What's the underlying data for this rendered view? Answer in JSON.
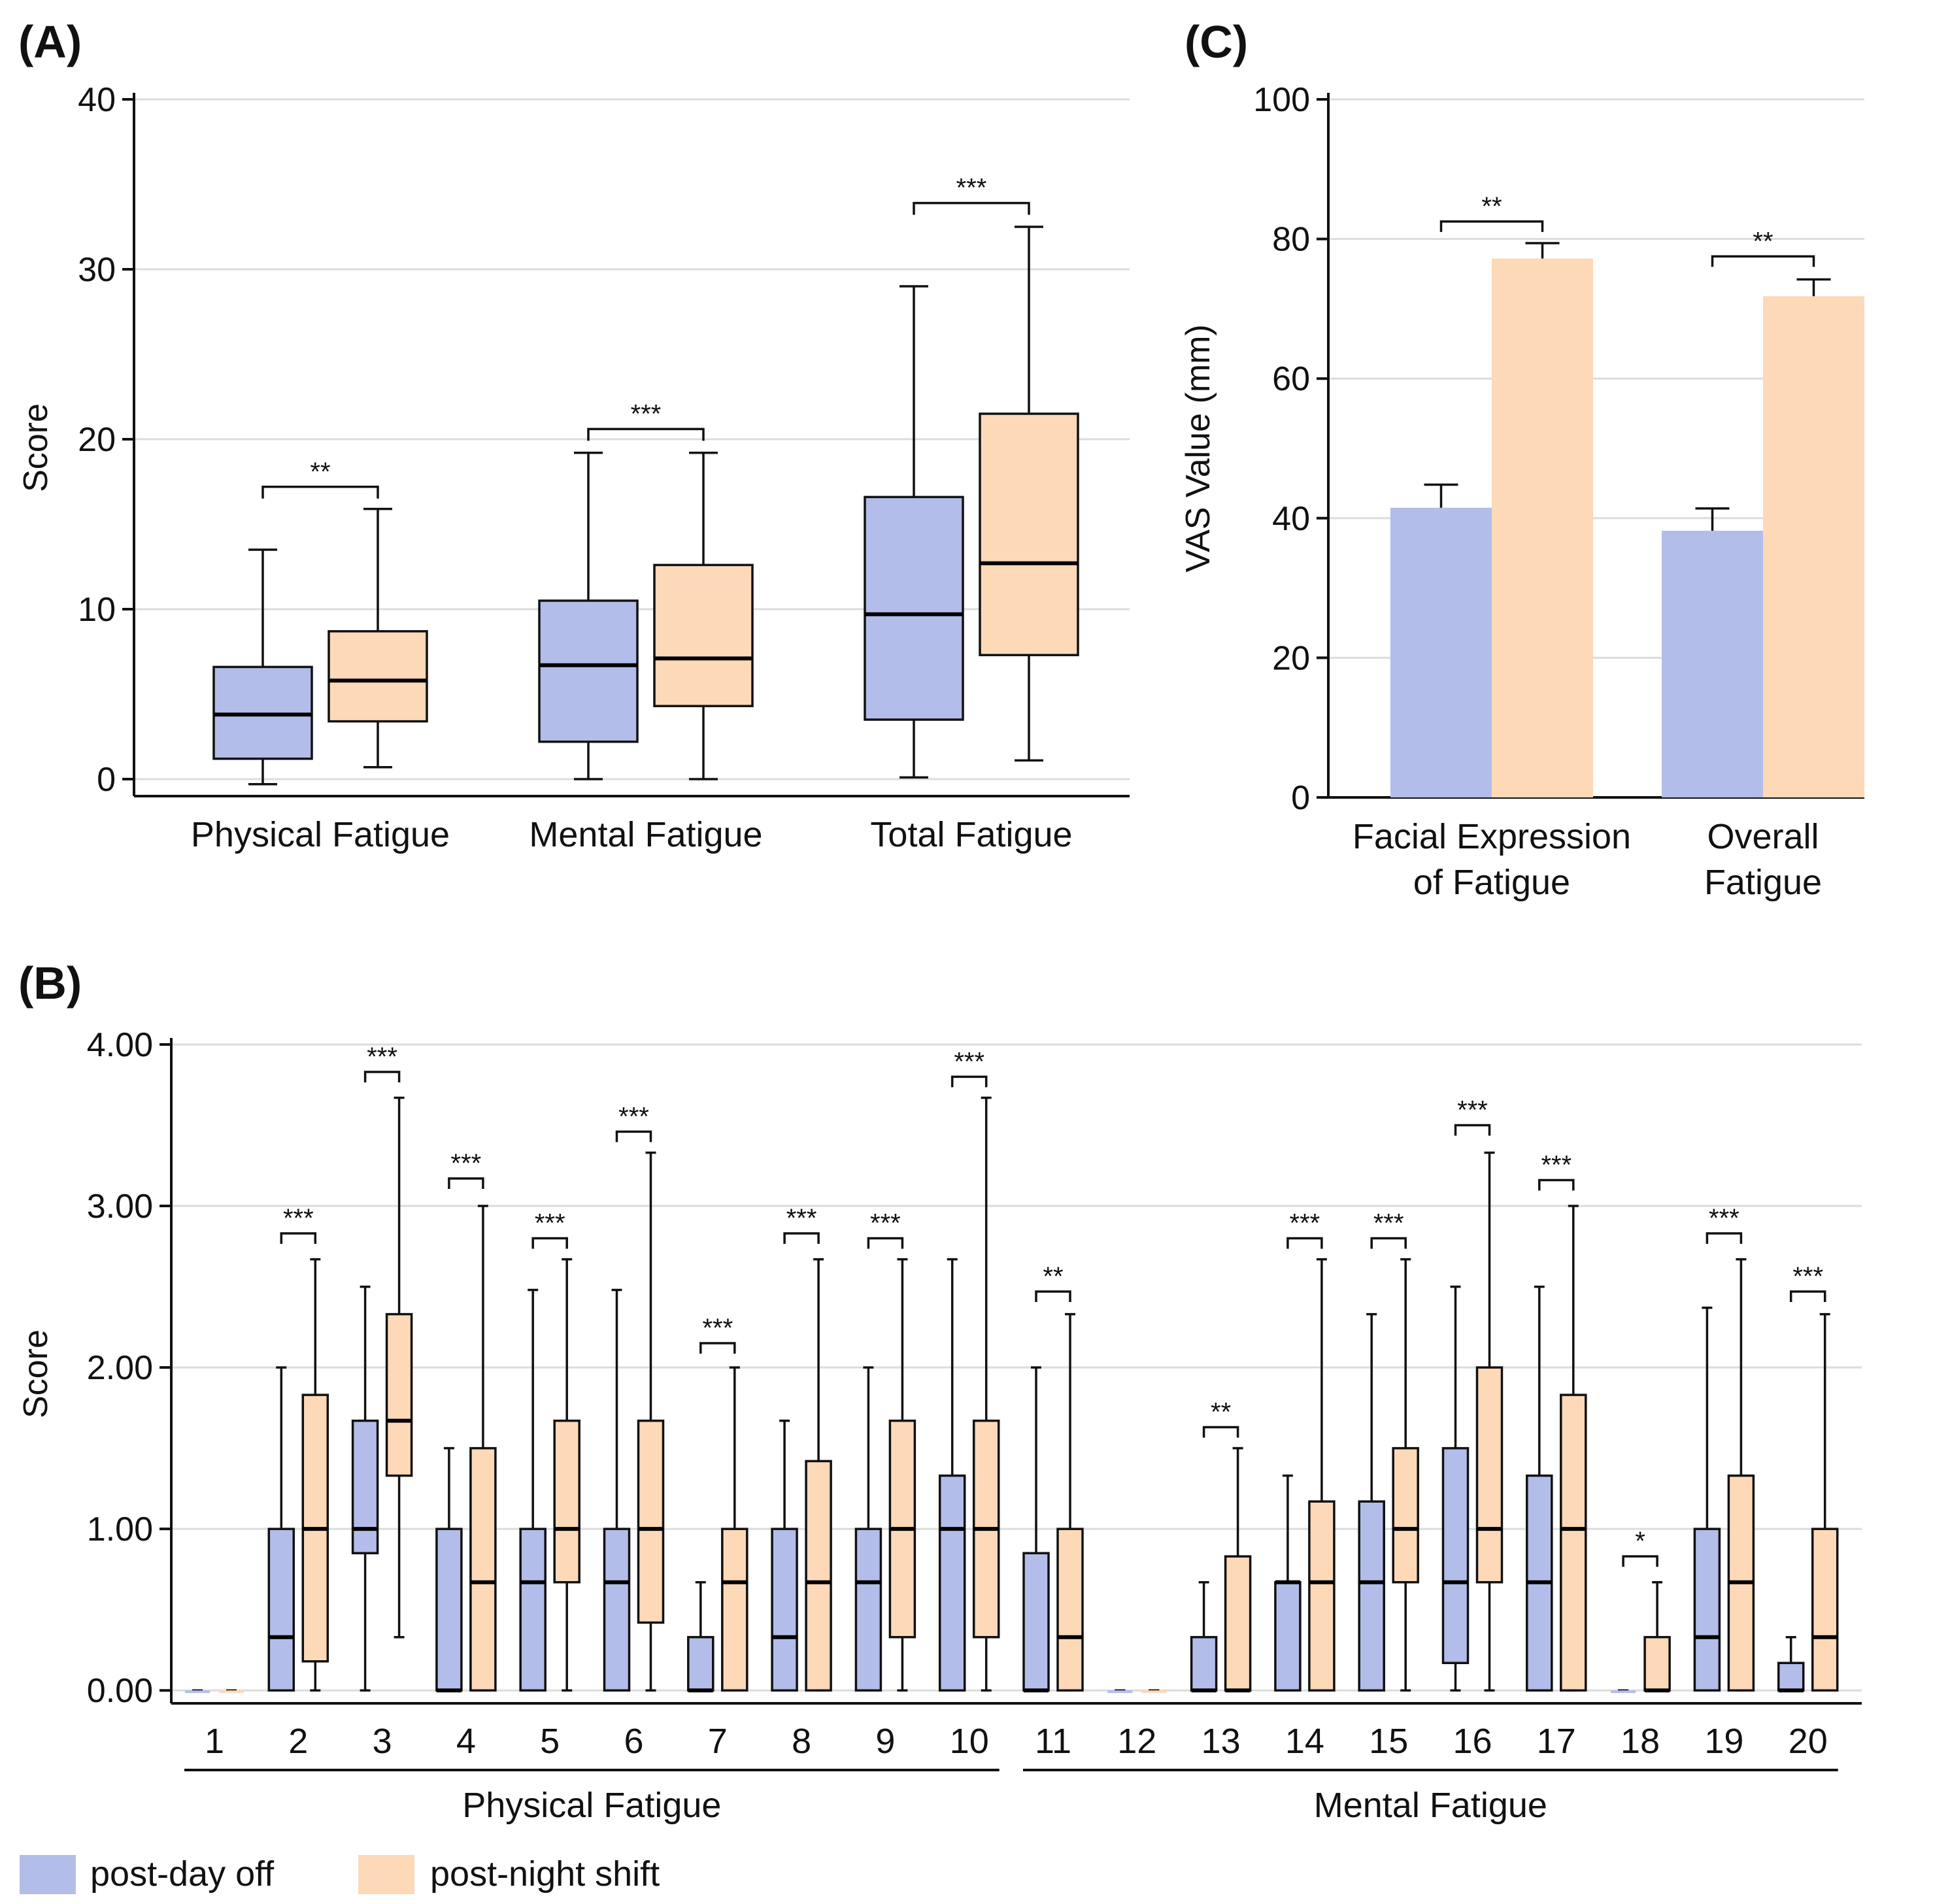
{
  "colors": {
    "day_off": "#b3bdea",
    "night_shift": "#fdd9b8",
    "grid": "#dcdcdc",
    "ink": "#111111"
  },
  "legend": [
    {
      "label": "post-day off",
      "color": "#b3bdea"
    },
    {
      "label": "post-night shift",
      "color": "#fdd9b8"
    }
  ],
  "chart_data": [
    {
      "panel": "(A)",
      "type": "box",
      "ylabel": "Score",
      "ylim": [
        -1,
        40
      ],
      "yticks": [
        0,
        10,
        20,
        30,
        40
      ],
      "ytick_labels": [
        "0",
        "10",
        "20",
        "30",
        "40"
      ],
      "categories": [
        "Physical Fatigue",
        "Mental Fatigue",
        "Total Fatigue"
      ],
      "series": [
        {
          "name": "post-day off",
          "boxes": [
            {
              "min": -0.3,
              "q1": 1.2,
              "median": 3.8,
              "q3": 6.6,
              "max": 13.5
            },
            {
              "min": 0.0,
              "q1": 2.2,
              "median": 6.7,
              "q3": 10.5,
              "max": 19.2
            },
            {
              "min": 0.1,
              "q1": 3.5,
              "median": 9.7,
              "q3": 16.6,
              "max": 29.0
            }
          ]
        },
        {
          "name": "post-night shift",
          "boxes": [
            {
              "min": 0.7,
              "q1": 3.4,
              "median": 5.8,
              "q3": 8.7,
              "max": 15.9
            },
            {
              "min": 0.0,
              "q1": 4.3,
              "median": 7.1,
              "q3": 12.6,
              "max": 19.2
            },
            {
              "min": 1.1,
              "q1": 7.3,
              "median": 12.7,
              "q3": 21.5,
              "max": 32.5
            }
          ]
        }
      ],
      "significance": [
        "**",
        "***",
        "***"
      ],
      "bracket_y": [
        17.2,
        20.6,
        33.9
      ]
    },
    {
      "panel": "(C)",
      "type": "bar",
      "ylabel": "VAS Value (mm)",
      "ylim": [
        0,
        100
      ],
      "yticks": [
        0,
        20,
        40,
        60,
        80,
        100
      ],
      "ytick_labels": [
        "0",
        "20",
        "40",
        "60",
        "80",
        "100"
      ],
      "categories": [
        [
          "Facial Expression",
          "of Fatigue"
        ],
        [
          "Overall",
          "Fatigue"
        ]
      ],
      "series": [
        {
          "name": "post-day off",
          "values": [
            41.5,
            38.2
          ],
          "errors": [
            3.3,
            3.2
          ]
        },
        {
          "name": "post-night shift",
          "values": [
            77.2,
            71.8
          ],
          "errors": [
            2.2,
            2.4
          ]
        }
      ],
      "significance": [
        "**",
        "**"
      ],
      "bracket_y": [
        82.5,
        77.5
      ]
    },
    {
      "panel": "(B)",
      "type": "box",
      "ylabel": "Score",
      "ylim": [
        -0.08,
        4.0
      ],
      "yticks": [
        0,
        1,
        2,
        3,
        4
      ],
      "ytick_labels": [
        "0.00",
        "1.00",
        "2.00",
        "3.00",
        "4.00"
      ],
      "categories": [
        "1",
        "2",
        "3",
        "4",
        "5",
        "6",
        "7",
        "8",
        "9",
        "10",
        "11",
        "12",
        "13",
        "14",
        "15",
        "16",
        "17",
        "18",
        "19",
        "20"
      ],
      "groups": [
        {
          "label": "Physical Fatigue",
          "from": 1,
          "to": 10
        },
        {
          "label": "Mental Fatigue",
          "from": 11,
          "to": 20
        }
      ],
      "series": [
        {
          "name": "post-day off",
          "boxes": [
            {
              "min": 0,
              "q1": 0,
              "median": 0,
              "q3": 0,
              "max": 0
            },
            {
              "min": 0,
              "q1": 0,
              "median": 0.33,
              "q3": 1.0,
              "max": 2.0
            },
            {
              "min": 0,
              "q1": 0.85,
              "median": 1.0,
              "q3": 1.67,
              "max": 2.5
            },
            {
              "min": 0,
              "q1": 0,
              "median": 0,
              "q3": 1.0,
              "max": 1.5
            },
            {
              "min": 0,
              "q1": 0,
              "median": 0.67,
              "q3": 1.0,
              "max": 2.48
            },
            {
              "min": 0,
              "q1": 0,
              "median": 0.67,
              "q3": 1.0,
              "max": 2.48
            },
            {
              "min": 0,
              "q1": 0,
              "median": 0,
              "q3": 0.33,
              "max": 0.67
            },
            {
              "min": 0,
              "q1": 0,
              "median": 0.33,
              "q3": 1.0,
              "max": 1.67
            },
            {
              "min": 0,
              "q1": 0,
              "median": 0.67,
              "q3": 1.0,
              "max": 2.0
            },
            {
              "min": 0,
              "q1": 0,
              "median": 1.0,
              "q3": 1.33,
              "max": 2.67
            },
            {
              "min": 0,
              "q1": 0,
              "median": 0,
              "q3": 0.85,
              "max": 2.0
            },
            {
              "min": 0,
              "q1": 0,
              "median": 0,
              "q3": 0,
              "max": 0
            },
            {
              "min": 0,
              "q1": 0,
              "median": 0,
              "q3": 0.33,
              "max": 0.67
            },
            {
              "min": 0,
              "q1": 0,
              "median": 0.67,
              "q3": 0.67,
              "max": 1.33
            },
            {
              "min": 0,
              "q1": 0,
              "median": 0.67,
              "q3": 1.17,
              "max": 2.33
            },
            {
              "min": 0,
              "q1": 0.17,
              "median": 0.67,
              "q3": 1.5,
              "max": 2.5
            },
            {
              "min": 0,
              "q1": 0,
              "median": 0.67,
              "q3": 1.33,
              "max": 2.5
            },
            {
              "min": 0,
              "q1": 0,
              "median": 0,
              "q3": 0,
              "max": 0
            },
            {
              "min": 0,
              "q1": 0,
              "median": 0.33,
              "q3": 1.0,
              "max": 2.37
            },
            {
              "min": 0,
              "q1": 0,
              "median": 0,
              "q3": 0.17,
              "max": 0.33
            }
          ]
        },
        {
          "name": "post-night shift",
          "boxes": [
            {
              "min": 0,
              "q1": 0,
              "median": 0,
              "q3": 0,
              "max": 0
            },
            {
              "min": 0,
              "q1": 0.18,
              "median": 1.0,
              "q3": 1.83,
              "max": 2.67
            },
            {
              "min": 0.33,
              "q1": 1.33,
              "median": 1.67,
              "q3": 2.33,
              "max": 3.67
            },
            {
              "min": 0,
              "q1": 0,
              "median": 0.67,
              "q3": 1.5,
              "max": 3.0
            },
            {
              "min": 0,
              "q1": 0.67,
              "median": 1.0,
              "q3": 1.67,
              "max": 2.67
            },
            {
              "min": 0,
              "q1": 0.42,
              "median": 1.0,
              "q3": 1.67,
              "max": 3.33
            },
            {
              "min": 0,
              "q1": 0,
              "median": 0.67,
              "q3": 1.0,
              "max": 2.0
            },
            {
              "min": 0,
              "q1": 0,
              "median": 0.67,
              "q3": 1.42,
              "max": 2.67
            },
            {
              "min": 0,
              "q1": 0.33,
              "median": 1.0,
              "q3": 1.67,
              "max": 2.67
            },
            {
              "min": 0,
              "q1": 0.33,
              "median": 1.0,
              "q3": 1.67,
              "max": 3.67
            },
            {
              "min": 0,
              "q1": 0,
              "median": 0.33,
              "q3": 1.0,
              "max": 2.33
            },
            {
              "min": 0,
              "q1": 0,
              "median": 0,
              "q3": 0,
              "max": 0
            },
            {
              "min": 0,
              "q1": 0,
              "median": 0,
              "q3": 0.83,
              "max": 1.5
            },
            {
              "min": 0,
              "q1": 0,
              "median": 0.67,
              "q3": 1.17,
              "max": 2.67
            },
            {
              "min": 0,
              "q1": 0.67,
              "median": 1.0,
              "q3": 1.5,
              "max": 2.67
            },
            {
              "min": 0,
              "q1": 0.67,
              "median": 1.0,
              "q3": 2.0,
              "max": 3.33
            },
            {
              "min": 0,
              "q1": 0,
              "median": 1.0,
              "q3": 1.83,
              "max": 3.0
            },
            {
              "min": 0,
              "q1": 0,
              "median": 0,
              "q3": 0.33,
              "max": 0.67
            },
            {
              "min": 0,
              "q1": 0,
              "median": 0.67,
              "q3": 1.33,
              "max": 2.67
            },
            {
              "min": 0,
              "q1": 0,
              "median": 0.33,
              "q3": 1.0,
              "max": 2.33
            }
          ]
        }
      ],
      "significance": [
        "",
        "***",
        "***",
        "***",
        "***",
        "***",
        "***",
        "***",
        "***",
        "***",
        "**",
        "",
        "**",
        "***",
        "***",
        "***",
        "***",
        "*",
        "***",
        "***"
      ],
      "bracket_y": [
        0,
        2.83,
        3.83,
        3.17,
        2.8,
        3.46,
        2.15,
        2.83,
        2.8,
        3.8,
        2.47,
        0,
        1.63,
        2.8,
        2.8,
        3.5,
        3.16,
        0.83,
        2.83,
        2.47
      ]
    }
  ]
}
